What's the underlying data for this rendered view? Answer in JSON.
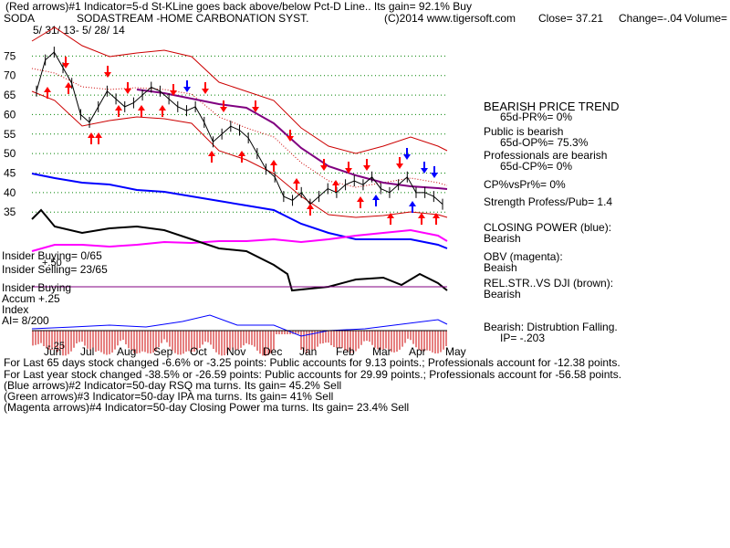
{
  "header": {
    "line1": "(Red arrows)#1 Indicator=5-d St-KLine goes back above/below Pct-D Line.. Its gain= 92.1% Buy",
    "symbol": "SODA",
    "company": "SODASTREAM -HOME CARBONATION SYST.",
    "copyright": "(C)2014 www.tigersoft.com",
    "close": "Close=  37.21",
    "change": "Change=-.04",
    "volume": "Volume="
  },
  "date_range": "5/ 31/ 13-  5/ 28/ 14",
  "colors": {
    "price": "#000000",
    "up_arrow": "#ff0000",
    "blue": "#0000ff",
    "magenta": "#ff00ff",
    "maroon": "#800080",
    "band": "#cc0000",
    "grid": "#008000",
    "accum": "#cc0000"
  },
  "chart_data": {
    "type": "line",
    "x_labels": [
      "Jun",
      "Jul",
      "Aug",
      "Sep",
      "Oct",
      "Nov",
      "Dec",
      "Jan",
      "Feb",
      "Mar",
      "Apr",
      "May"
    ],
    "y_ticks": [
      35,
      40,
      45,
      50,
      55,
      60,
      65,
      70,
      75
    ],
    "ylim": [
      32,
      80
    ],
    "series": [
      {
        "values": [
          66,
          74,
          76,
          72,
          68,
          60,
          58,
          62,
          66,
          64,
          62,
          63,
          65,
          67,
          66,
          64,
          62,
          61,
          62,
          58,
          53,
          55,
          57,
          56,
          54,
          50,
          46,
          44,
          39,
          38,
          40,
          37,
          39,
          41,
          40,
          42,
          43,
          42,
          44,
          41,
          40,
          42,
          44,
          40,
          40,
          39,
          37
        ]
      }
    ],
    "annotations_left": {
      "insider_buying": "Insider Buying= 0/65",
      "insider_selling": "Insider Selling= 23/65",
      "plus50": "+.50",
      "insider_buying2": "Insider Buying",
      "accum": "Accum  +.25",
      "index": "Index",
      "ai": "AI= 8/200",
      "minus25": "-.25"
    }
  },
  "side_panel": {
    "trend_title": "BEARISH PRICE TREND",
    "pr": "65d-PR%= 0%",
    "public_title": "Public is bearish",
    "op": "65d-OP%= 75.3%",
    "prof_title": "Professionals are bearish",
    "cp": "65d-CP%= 0%",
    "cpvspr": "CP%vsPr%=  0%",
    "strength": "Strength Profess/Pub= 1.4",
    "closing_power": "CLOSING POWER (blue):",
    "closing_power_val": "Bearish",
    "obv": "OBV (magenta):",
    "obv_val": "Beaish",
    "relstr": "REL.STR..VS DJI (brown):",
    "relstr_val": "Bearish",
    "dist": "Bearish:  Distrubtion Falling.",
    "ip": "IP= -.203"
  },
  "footer": {
    "line1": "For Last 65 days stock changed -6.6% or -3.25 points:  Public accounts for  9.13 points.;  Professionals account for -12.38 points.",
    "line2": "For Last year stock changed -38.5% or -26.59 points:  Public accounts for  29.99 points.;  Professionals account for -56.58 points.",
    "line3": "(Blue arrows)#2 Indicator=50-day RSQ ma turns. Its gain= 45.2% Sell",
    "line4": "(Green arrows)#3 Indicator=50-day IPA ma turns. Its gain= 41% Sell",
    "line5": "(Magenta arrows)#4 Indicator=50-day Closing Power ma turns. Its gain= 23.4% Sell"
  }
}
